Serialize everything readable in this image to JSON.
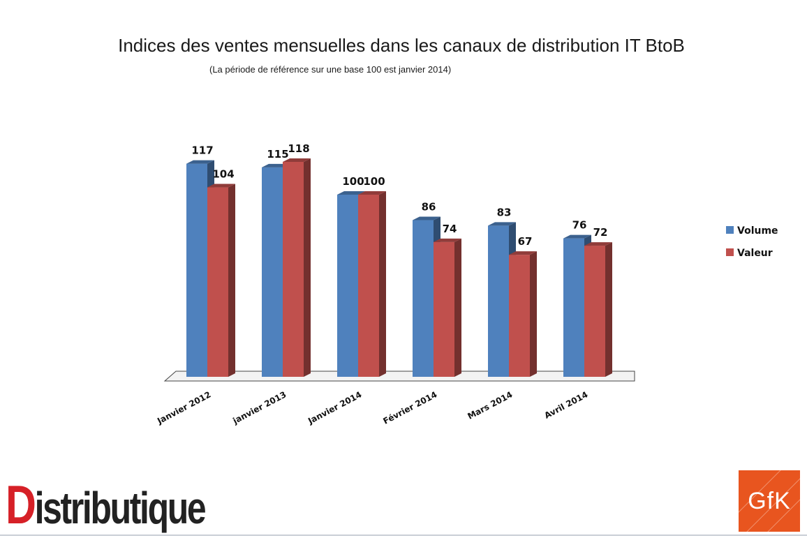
{
  "chart_data": {
    "type": "bar",
    "title": "Indices des ventes mensuelles dans les canaux de distribution IT BtoB",
    "subtitle": "(La période de référence sur une base 100 est janvier 2014)",
    "categories": [
      "Janvier 2012",
      "janvier 2013",
      "Janvier 2014",
      "Février 2014",
      "Mars 2014",
      "Avril 2014"
    ],
    "series": [
      {
        "name": "Volume",
        "values": [
          117,
          115,
          100,
          86,
          83,
          76
        ],
        "color": "#4f81bd"
      },
      {
        "name": "Valeur",
        "values": [
          104,
          118,
          100,
          74,
          67,
          72
        ],
        "color": "#c0504d"
      }
    ],
    "ylim": [
      0,
      118
    ],
    "grid": false,
    "legend": "right",
    "style": "3d-clustered-column"
  },
  "logos": {
    "distributique": {
      "first_letter": "D",
      "rest": "istributique"
    },
    "gfk": "GfK"
  }
}
